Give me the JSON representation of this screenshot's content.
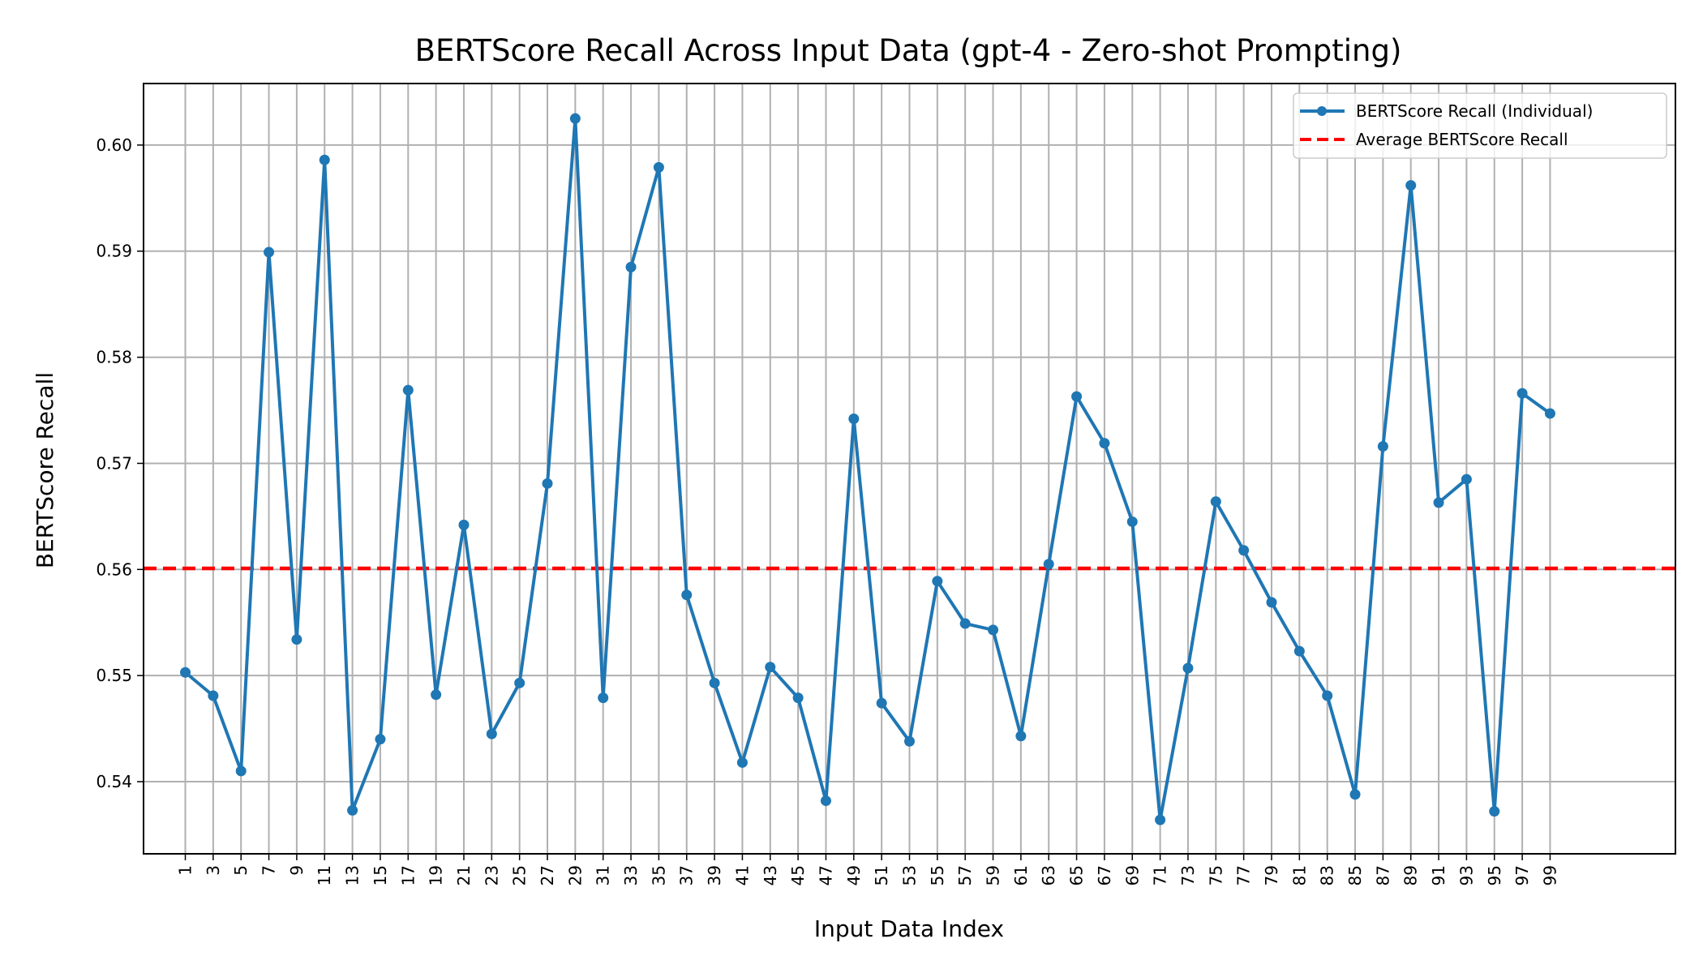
{
  "chart_data": {
    "type": "line",
    "title": "BERTScore Recall Across Input Data (gpt-4 - Zero-shot Prompting)",
    "xlabel": "Input Data Index",
    "ylabel": "BERTScore Recall",
    "xlim": [
      -2.0,
      108.0
    ],
    "ylim": [
      0.5332,
      0.6058
    ],
    "yticks": [
      0.54,
      0.55,
      0.56,
      0.57,
      0.58,
      0.59,
      0.6
    ],
    "ytick_labels": [
      "0.54",
      "0.55",
      "0.56",
      "0.57",
      "0.58",
      "0.59",
      "0.60"
    ],
    "grid": true,
    "legend_position": "top-right",
    "x": [
      1,
      3,
      5,
      7,
      9,
      11,
      13,
      15,
      17,
      19,
      21,
      23,
      25,
      27,
      29,
      31,
      33,
      35,
      37,
      39,
      41,
      43,
      45,
      47,
      49,
      51,
      53,
      55,
      57,
      59,
      61,
      63,
      65,
      67,
      69,
      71,
      73,
      75,
      77,
      79,
      81,
      83,
      85,
      87,
      89,
      91,
      93,
      95,
      97,
      99
    ],
    "xtick_labels": [
      "1",
      "3",
      "5",
      "7",
      "9",
      "11",
      "13",
      "15",
      "17",
      "19",
      "21",
      "23",
      "25",
      "27",
      "29",
      "31",
      "33",
      "35",
      "37",
      "39",
      "41",
      "43",
      "45",
      "47",
      "49",
      "51",
      "53",
      "55",
      "57",
      "59",
      "61",
      "63",
      "65",
      "67",
      "69",
      "71",
      "73",
      "75",
      "77",
      "79",
      "81",
      "83",
      "85",
      "87",
      "89",
      "91",
      "93",
      "95",
      "97",
      "99"
    ],
    "series": [
      {
        "name": "BERTScore Recall (Individual)",
        "color": "#1f77b4",
        "values": [
          0.5503,
          0.5481,
          0.541,
          0.5899,
          0.5534,
          0.5986,
          0.5373,
          0.544,
          0.5769,
          0.5482,
          0.5642,
          0.5445,
          0.5493,
          0.5681,
          0.6025,
          0.5479,
          0.5885,
          0.5979,
          0.5576,
          0.5493,
          0.5418,
          0.5508,
          0.5479,
          0.5382,
          0.5742,
          0.5474,
          0.5438,
          0.5589,
          0.5549,
          0.5543,
          0.5443,
          0.5605,
          0.5763,
          0.5719,
          0.5645,
          0.5364,
          0.5507,
          0.5664,
          0.5618,
          0.5569,
          0.5523,
          0.5481,
          0.5388,
          0.5716,
          0.5962,
          0.5663,
          0.5685,
          0.5372,
          0.5766,
          0.5747
        ]
      }
    ],
    "average": {
      "name": "Average BERTScore Recall",
      "value": 0.5601,
      "color": "#ff0000"
    }
  }
}
